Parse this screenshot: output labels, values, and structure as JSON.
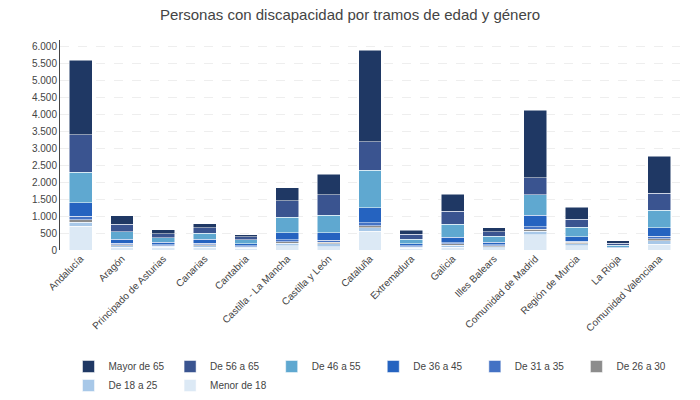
{
  "chart_data": {
    "type": "bar",
    "title": "Personas con discapacidad por tramos de edad y género",
    "categories": [
      "Andalucía",
      "Aragón",
      "Principado de Asturias",
      "Canarias",
      "Cantabria",
      "Castilla - La Mancha",
      "Castilla y León",
      "Cataluña",
      "Extremadura",
      "Galicia",
      "Illes Balears",
      "Comunidad de Madrid",
      "Región de Murcia",
      "La Rioja",
      "Comunidad Valenciana"
    ],
    "series": [
      {
        "name": "Menor de 18",
        "color": "#dce9f5",
        "values": [
          700,
          80,
          80,
          80,
          50,
          120,
          100,
          550,
          50,
          80,
          60,
          450,
          130,
          20,
          170
        ]
      },
      {
        "name": "De 18 a 25",
        "color": "#a8c8e8",
        "values": [
          120,
          50,
          30,
          50,
          30,
          80,
          80,
          100,
          30,
          60,
          40,
          100,
          60,
          15,
          100
        ]
      },
      {
        "name": "De 26 a 30",
        "color": "#8c8c8c",
        "values": [
          80,
          30,
          20,
          30,
          20,
          50,
          50,
          70,
          20,
          40,
          25,
          60,
          35,
          10,
          60
        ]
      },
      {
        "name": "De 31 a 35",
        "color": "#4472c4",
        "values": [
          100,
          40,
          25,
          40,
          20,
          60,
          60,
          80,
          20,
          40,
          25,
          70,
          40,
          10,
          70
        ]
      },
      {
        "name": "De 36 a 45",
        "color": "#2563c0",
        "values": [
          400,
          120,
          80,
          120,
          70,
          200,
          220,
          450,
          70,
          160,
          80,
          350,
          120,
          30,
          250
        ]
      },
      {
        "name": "De 46 a 55",
        "color": "#5fa8d0",
        "values": [
          900,
          220,
          130,
          180,
          110,
          450,
          520,
          1100,
          130,
          380,
          170,
          600,
          280,
          60,
          520
        ]
      },
      {
        "name": "De 56 a 65",
        "color": "#3a5490",
        "values": [
          1100,
          220,
          110,
          150,
          90,
          500,
          600,
          850,
          140,
          380,
          140,
          500,
          240,
          60,
          500
        ]
      },
      {
        "name": "Mayor de 65",
        "color": "#1f3864",
        "values": [
          2200,
          250,
          130,
          130,
          60,
          380,
          600,
          2700,
          120,
          500,
          110,
          2000,
          350,
          70,
          1100
        ]
      }
    ],
    "stacked": true,
    "ylim": [
      0,
      6200
    ],
    "yticks": [
      0,
      500,
      {
        "value": 1000,
        "label": "1.000"
      },
      {
        "value": 1500,
        "label": "1.500"
      },
      {
        "value": 2000,
        "label": "2.000"
      },
      {
        "value": 2500,
        "label": "2.500"
      },
      {
        "value": 3000,
        "label": "3.000"
      },
      {
        "value": 3500,
        "label": "3.500"
      },
      {
        "value": 4000,
        "label": "4.000"
      },
      {
        "value": 4500,
        "label": "4.500"
      },
      {
        "value": 5000,
        "label": "5.000"
      },
      {
        "value": 5500,
        "label": "5.500"
      },
      {
        "value": 6000,
        "label": "6.000"
      }
    ],
    "grid": true,
    "legend": "bottom"
  }
}
